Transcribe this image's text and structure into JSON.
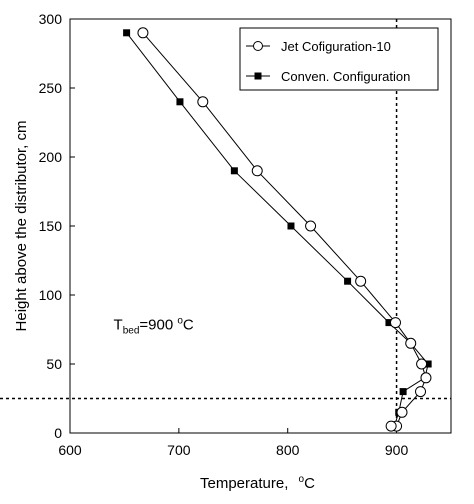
{
  "chart_data": {
    "type": "line",
    "xlabel": "Temperature,",
    "xlabel_unit": "oC",
    "ylabel": "Height above the distributor, cm",
    "xlim": [
      600,
      950
    ],
    "ylim": [
      0,
      300
    ],
    "x_ticks": [
      600,
      700,
      800,
      900
    ],
    "y_ticks": [
      0,
      50,
      100,
      150,
      200,
      250,
      300
    ],
    "grid": false,
    "legend_position": "top-right",
    "series": [
      {
        "name": "Jet Cofiguration-10",
        "marker": "open-circle",
        "color": "#000000",
        "x": [
          667,
          722,
          772,
          821,
          867,
          899,
          913,
          923,
          927,
          922,
          905,
          900,
          895
        ],
        "y": [
          290,
          240,
          190,
          150,
          110,
          80,
          65,
          50,
          40,
          30,
          15,
          5,
          5
        ]
      },
      {
        "name": "Conven. Configuration",
        "marker": "filled-square",
        "color": "#000000",
        "x": [
          652,
          701,
          751,
          803,
          855,
          893,
          913,
          929,
          926,
          906,
          902,
          898
        ],
        "y": [
          290,
          240,
          190,
          150,
          110,
          80,
          65,
          50,
          40,
          30,
          15,
          5
        ]
      }
    ],
    "reference_lines": [
      {
        "orientation": "vertical",
        "value": 900,
        "style": "dotted"
      },
      {
        "orientation": "horizontal",
        "value": 25,
        "style": "dotted"
      }
    ],
    "annotation": {
      "label_main": "T",
      "label_sub": "bed",
      "label_value": "=900",
      "label_sup": "o",
      "label_unit": "C",
      "x": 640,
      "y": 75
    }
  }
}
